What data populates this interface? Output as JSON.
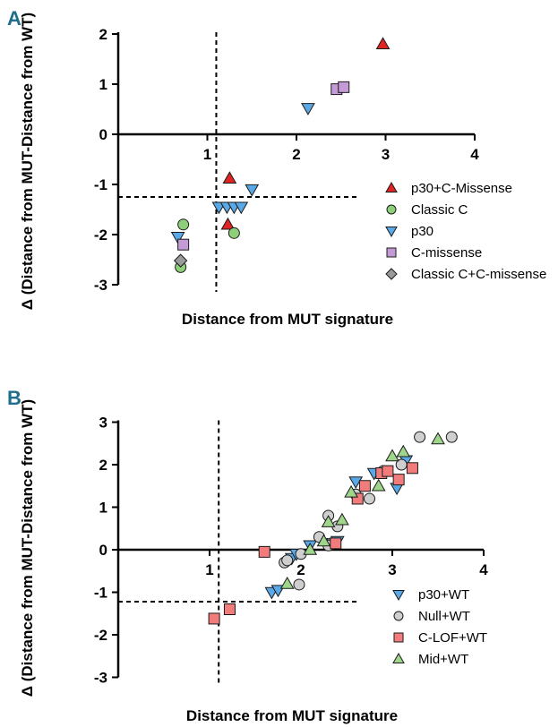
{
  "panels": [
    {
      "letter": "A",
      "chart_data": {
        "type": "scatter",
        "xlabel": "Distance from MUT signature",
        "ylabel": "Δ (Distance from MUT-Distance from WT)",
        "xlim": [
          0,
          4
        ],
        "ylim": [
          -3,
          2
        ],
        "x_ticks": [
          "1",
          "2",
          "3",
          "4"
        ],
        "y_ticks": [
          "-3",
          "-2",
          "-1",
          "0",
          "1",
          "2"
        ],
        "threshold_x": 1.1,
        "threshold_y": -1.25,
        "legend_position": "right",
        "series": [
          {
            "name": "p30+C-Missense",
            "marker": "triangle-up",
            "color": "#e02424",
            "points": [
              [
                2.97,
                1.8
              ],
              [
                1.25,
                -0.88
              ],
              [
                1.23,
                -1.8
              ]
            ]
          },
          {
            "name": "Classic C",
            "marker": "circle",
            "color": "#8ed07a",
            "points": [
              [
                0.73,
                -1.8
              ],
              [
                0.7,
                -2.65
              ],
              [
                1.3,
                -1.97
              ]
            ]
          },
          {
            "name": "p30",
            "marker": "triangle-down",
            "color": "#5aa9e6",
            "points": [
              [
                2.13,
                0.52
              ],
              [
                1.5,
                -1.1
              ],
              [
                1.13,
                -1.45
              ],
              [
                1.22,
                -1.45
              ],
              [
                1.3,
                -1.45
              ],
              [
                1.38,
                -1.45
              ],
              [
                0.67,
                -2.05
              ]
            ]
          },
          {
            "name": "C-missense",
            "marker": "square",
            "color": "#c49bd6",
            "points": [
              [
                2.45,
                0.9
              ],
              [
                2.53,
                0.94
              ],
              [
                0.73,
                -2.2
              ]
            ]
          },
          {
            "name": "Classic C+C-missense",
            "marker": "diamond",
            "color": "#9a9a9a",
            "points": [
              [
                0.7,
                -2.52
              ]
            ]
          }
        ]
      }
    },
    {
      "letter": "B",
      "chart_data": {
        "type": "scatter",
        "xlabel": "Distance from MUT signature",
        "ylabel": "Δ (Distance from MUT-Distance from WT)",
        "xlim": [
          0,
          4
        ],
        "ylim": [
          -3,
          3
        ],
        "x_ticks": [
          "1",
          "2",
          "3",
          "4"
        ],
        "y_ticks": [
          "-3",
          "-2",
          "-1",
          "0",
          "1",
          "2",
          "3"
        ],
        "threshold_x": 1.1,
        "threshold_y": -1.22,
        "legend_position": "bottom-right",
        "series": [
          {
            "name": "p30+WT",
            "marker": "triangle-down",
            "color": "#5aa9e6",
            "points": [
              [
                1.68,
                -1.0
              ],
              [
                1.75,
                -0.95
              ],
              [
                1.9,
                -0.2
              ],
              [
                1.95,
                -0.1
              ],
              [
                2.1,
                0.1
              ],
              [
                2.4,
                0.2
              ],
              [
                2.6,
                1.6
              ],
              [
                2.8,
                1.8
              ],
              [
                3.05,
                1.45
              ],
              [
                3.15,
                2.1
              ],
              [
                2.35,
                0.15
              ]
            ]
          },
          {
            "name": "Null+WT",
            "marker": "circle",
            "color": "#cfcfcf",
            "points": [
              [
                1.82,
                -0.3
              ],
              [
                1.85,
                -0.25
              ],
              [
                1.98,
                -0.82
              ],
              [
                2.0,
                -0.1
              ],
              [
                2.2,
                0.3
              ],
              [
                2.3,
                0.1
              ],
              [
                2.3,
                0.8
              ],
              [
                2.4,
                0.55
              ],
              [
                2.6,
                1.3
              ],
              [
                2.75,
                1.2
              ],
              [
                2.9,
                1.85
              ],
              [
                3.3,
                2.65
              ],
              [
                3.65,
                2.65
              ],
              [
                3.1,
                2.0
              ]
            ]
          },
          {
            "name": "C-LOF+WT",
            "marker": "square",
            "color": "#f27c7c",
            "points": [
              [
                1.6,
                -0.05
              ],
              [
                1.05,
                -1.62
              ],
              [
                1.22,
                -1.4
              ],
              [
                2.38,
                0.15
              ],
              [
                2.62,
                1.2
              ],
              [
                2.7,
                1.5
              ],
              [
                2.88,
                1.8
              ],
              [
                2.95,
                1.85
              ],
              [
                3.07,
                1.65
              ],
              [
                3.22,
                1.92
              ]
            ]
          },
          {
            "name": "Mid+WT",
            "marker": "triangle-up",
            "color": "#9fd68b",
            "points": [
              [
                1.85,
                -0.8
              ],
              [
                2.1,
                0.0
              ],
              [
                2.3,
                0.65
              ],
              [
                2.45,
                0.7
              ],
              [
                2.55,
                1.35
              ],
              [
                2.85,
                1.5
              ],
              [
                3.0,
                2.2
              ],
              [
                3.12,
                2.3
              ],
              [
                3.5,
                2.6
              ],
              [
                2.25,
                0.2
              ]
            ]
          }
        ]
      }
    }
  ]
}
